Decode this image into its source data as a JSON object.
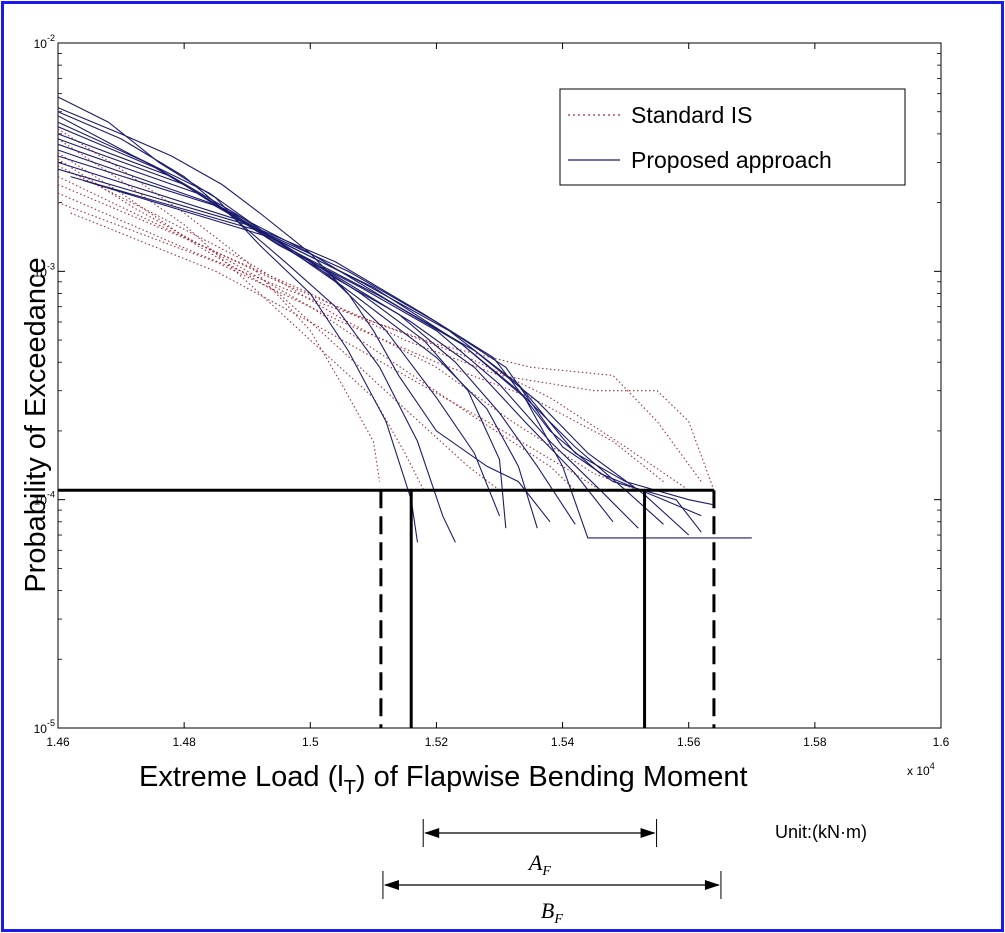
{
  "chart_data": {
    "type": "line",
    "xlabel": "Extreme Load (l_T) of Flapwise Bending Moment",
    "xlabel_parts": {
      "pre": "Extreme Load (l",
      "sub": "T",
      "post": ") of Flapwise Bending Moment"
    },
    "ylabel": "Probability of Exceedance",
    "x_multiplier": {
      "base": "x 10",
      "exp": "4"
    },
    "xlim": [
      14600,
      16000
    ],
    "ylim": [
      1e-05,
      0.01
    ],
    "yscale": "log",
    "grid": false,
    "legend_position": "top-right",
    "x_ticks": [
      {
        "value": 14600,
        "label": "1.46"
      },
      {
        "value": 14800,
        "label": "1.48"
      },
      {
        "value": 15000,
        "label": "1.5"
      },
      {
        "value": 15200,
        "label": "1.52"
      },
      {
        "value": 15400,
        "label": "1.54"
      },
      {
        "value": 15600,
        "label": "1.56"
      },
      {
        "value": 15800,
        "label": "1.58"
      },
      {
        "value": 16000,
        "label": "1.6"
      }
    ],
    "y_ticks": [
      {
        "value": 1e-05,
        "base": "10",
        "exp": "-5"
      },
      {
        "value": 0.0001,
        "base": "10",
        "exp": "-4"
      },
      {
        "value": 0.001,
        "base": "10",
        "exp": "-3"
      },
      {
        "value": 0.01,
        "base": "10",
        "exp": "-2"
      }
    ],
    "series": [
      {
        "name": "Standard IS",
        "style": "dotted",
        "color": "#a0303a",
        "curves": [
          [
            [
              14600,
              0.0042
            ],
            [
              14700,
              0.0028
            ],
            [
              14800,
              0.0018
            ],
            [
              14900,
              0.0011
            ],
            [
              15000,
              0.00055
            ],
            [
              15050,
              0.00032
            ],
            [
              15100,
              0.00018
            ],
            [
              15110,
              0.00012
            ]
          ],
          [
            [
              14600,
              0.0038
            ],
            [
              14700,
              0.0025
            ],
            [
              14800,
              0.0016
            ],
            [
              14900,
              0.0009
            ],
            [
              15000,
              0.0005
            ],
            [
              15100,
              0.00028
            ],
            [
              15150,
              0.00016
            ],
            [
              15180,
              0.00011
            ]
          ],
          [
            [
              14600,
              0.0033
            ],
            [
              14700,
              0.0022
            ],
            [
              14820,
              0.0013
            ],
            [
              14950,
              0.0008
            ],
            [
              15050,
              0.00045
            ],
            [
              15150,
              0.00025
            ],
            [
              15250,
              0.00014
            ],
            [
              15300,
              0.00011
            ]
          ],
          [
            [
              14600,
              0.0031
            ],
            [
              14720,
              0.0019
            ],
            [
              14850,
              0.0012
            ],
            [
              15000,
              0.0007
            ],
            [
              15120,
              0.00042
            ],
            [
              15250,
              0.00024
            ],
            [
              15380,
              0.00014
            ],
            [
              15420,
              0.00011
            ]
          ],
          [
            [
              14600,
              0.0029
            ],
            [
              14750,
              0.0018
            ],
            [
              14900,
              0.0011
            ],
            [
              15050,
              0.00062
            ],
            [
              15200,
              0.00038
            ],
            [
              15320,
              0.00022
            ],
            [
              15450,
              0.00013
            ],
            [
              15520,
              0.00011
            ]
          ],
          [
            [
              14600,
              0.0026
            ],
            [
              14780,
              0.0015
            ],
            [
              14950,
              0.0009
            ],
            [
              15100,
              0.0006
            ],
            [
              15250,
              0.00042
            ],
            [
              15380,
              0.00028
            ],
            [
              15500,
              0.00017
            ],
            [
              15600,
              0.00011
            ]
          ],
          [
            [
              14600,
              0.0024
            ],
            [
              14800,
              0.0014
            ],
            [
              15000,
              0.0008
            ],
            [
              15150,
              0.0005
            ],
            [
              15300,
              0.00035
            ],
            [
              15450,
              0.0003
            ],
            [
              15550,
              0.0003
            ],
            [
              15600,
              0.00022
            ],
            [
              15640,
              0.00011
            ]
          ],
          [
            [
              14600,
              0.0022
            ],
            [
              14820,
              0.0012
            ],
            [
              15020,
              0.00072
            ],
            [
              15200,
              0.00048
            ],
            [
              15350,
              0.00038
            ],
            [
              15480,
              0.00035
            ],
            [
              15550,
              0.00022
            ],
            [
              15620,
              0.00012
            ]
          ],
          [
            [
              14600,
              0.002
            ],
            [
              14850,
              0.0011
            ],
            [
              15050,
              0.0006
            ],
            [
              15200,
              0.0004
            ],
            [
              15350,
              0.00028
            ],
            [
              15480,
              0.00018
            ],
            [
              15560,
              0.00012
            ]
          ],
          [
            [
              14620,
              0.0018
            ],
            [
              14850,
              0.001
            ],
            [
              15000,
              0.0006
            ],
            [
              15150,
              0.00035
            ],
            [
              15280,
              0.00022
            ],
            [
              15400,
              0.00014
            ],
            [
              15460,
              0.00011
            ]
          ]
        ]
      },
      {
        "name": "Proposed approach",
        "style": "solid",
        "color": "#1c1c6e",
        "curves": [
          [
            [
              14600,
              0.0058
            ],
            [
              14680,
              0.0045
            ],
            [
              14760,
              0.003
            ],
            [
              14850,
              0.0021
            ],
            [
              14920,
              0.0013
            ],
            [
              15000,
              0.0008
            ],
            [
              15060,
              0.00045
            ],
            [
              15120,
              0.00022
            ],
            [
              15160,
              0.0001
            ],
            [
              15170,
              6.5e-05
            ]
          ],
          [
            [
              14600,
              0.005
            ],
            [
              14700,
              0.0038
            ],
            [
              14800,
              0.0026
            ],
            [
              14880,
              0.0017
            ],
            [
              14960,
              0.0011
            ],
            [
              15040,
              0.0007
            ],
            [
              15110,
              0.00038
            ],
            [
              15170,
              0.00018
            ],
            [
              15210,
              8.5e-05
            ],
            [
              15230,
              6.5e-05
            ]
          ],
          [
            [
              14600,
              0.0048
            ],
            [
              14720,
              0.0032
            ],
            [
              14840,
              0.0022
            ],
            [
              14940,
              0.0014
            ],
            [
              15040,
              0.0009
            ],
            [
              15120,
              0.00055
            ],
            [
              15200,
              0.00028
            ],
            [
              15260,
              0.00016
            ],
            [
              15300,
              8.5e-05
            ]
          ],
          [
            [
              14600,
              0.0045
            ],
            [
              14740,
              0.003
            ],
            [
              14860,
              0.0019
            ],
            [
              14980,
              0.0012
            ],
            [
              15080,
              0.0008
            ],
            [
              15180,
              0.0005
            ],
            [
              15250,
              0.0003
            ],
            [
              15300,
              0.00015
            ],
            [
              15310,
              7.5e-05
            ]
          ],
          [
            [
              14600,
              0.0043
            ],
            [
              14760,
              0.0028
            ],
            [
              14880,
              0.0018
            ],
            [
              15000,
              0.0011
            ],
            [
              15100,
              0.00068
            ],
            [
              15200,
              0.00042
            ],
            [
              15280,
              0.00025
            ],
            [
              15330,
              0.00014
            ],
            [
              15360,
              7.5e-05
            ]
          ],
          [
            [
              14600,
              0.004
            ],
            [
              14780,
              0.0026
            ],
            [
              14900,
              0.0016
            ],
            [
              15020,
              0.001
            ],
            [
              15140,
              0.00065
            ],
            [
              15230,
              0.0004
            ],
            [
              15300,
              0.00024
            ],
            [
              15360,
              0.00014
            ],
            [
              15420,
              7.8e-05
            ]
          ],
          [
            [
              14600,
              0.0038
            ],
            [
              14800,
              0.0024
            ],
            [
              14920,
              0.0015
            ],
            [
              15050,
              0.00092
            ],
            [
              15160,
              0.0006
            ],
            [
              15260,
              0.00038
            ],
            [
              15340,
              0.00022
            ],
            [
              15420,
              0.00013
            ],
            [
              15480,
              8e-05
            ]
          ],
          [
            [
              14600,
              0.0036
            ],
            [
              14820,
              0.0022
            ],
            [
              14950,
              0.0013
            ],
            [
              15080,
              0.00085
            ],
            [
              15200,
              0.00055
            ],
            [
              15300,
              0.00032
            ],
            [
              15380,
              0.00018
            ],
            [
              15460,
              0.00011
            ],
            [
              15520,
              7.5e-05
            ]
          ],
          [
            [
              14600,
              0.0034
            ],
            [
              14840,
              0.002
            ],
            [
              14980,
              0.0012
            ],
            [
              15110,
              0.00078
            ],
            [
              15240,
              0.00048
            ],
            [
              15330,
              0.0003
            ],
            [
              15420,
              0.00017
            ],
            [
              15500,
              0.00011
            ],
            [
              15560,
              7.8e-05
            ]
          ],
          [
            [
              14600,
              0.0032
            ],
            [
              14860,
              0.0019
            ],
            [
              15000,
              0.0012
            ],
            [
              15140,
              0.0007
            ],
            [
              15260,
              0.00045
            ],
            [
              15360,
              0.00027
            ],
            [
              15440,
              0.00016
            ],
            [
              15530,
              0.000105
            ],
            [
              15600,
              7e-05
            ]
          ],
          [
            [
              14600,
              0.003
            ],
            [
              14880,
              0.0017
            ],
            [
              15040,
              0.0011
            ],
            [
              15180,
              0.00065
            ],
            [
              15290,
              0.00042
            ],
            [
              15380,
              0.0002
            ],
            [
              15460,
              0.00013
            ],
            [
              15560,
              0.0001
            ],
            [
              15620,
              8.5e-05
            ]
          ],
          [
            [
              14600,
              0.0028
            ],
            [
              14900,
              0.0016
            ],
            [
              15060,
              0.001
            ],
            [
              15200,
              0.0006
            ],
            [
              15310,
              0.00038
            ],
            [
              15400,
              0.00017
            ],
            [
              15480,
              0.00012
            ],
            [
              15580,
              0.0001
            ],
            [
              15620,
              7.2e-05
            ]
          ],
          [
            [
              14620,
              0.0026
            ],
            [
              14920,
              0.0015
            ],
            [
              15080,
              0.0009
            ],
            [
              15220,
              0.00055
            ],
            [
              15330,
              0.00032
            ],
            [
              15420,
              0.00016
            ],
            [
              15500,
              0.00012
            ],
            [
              15600,
              0.0001
            ],
            [
              15640,
              9.5e-05
            ]
          ],
          [
            [
              14640,
              0.0025
            ],
            [
              14940,
              0.0014
            ],
            [
              15100,
              0.00085
            ],
            [
              15240,
              0.00048
            ],
            [
              15340,
              0.00028
            ],
            [
              15400,
              0.00014
            ],
            [
              15440,
              6.8e-05
            ],
            [
              15700,
              6.8e-05
            ]
          ],
          [
            [
              14600,
              0.0052
            ],
            [
              14700,
              0.004
            ],
            [
              14780,
              0.0032
            ],
            [
              14860,
              0.0024
            ],
            [
              14920,
              0.0018
            ],
            [
              15000,
              0.0012
            ],
            [
              15060,
              0.0008
            ],
            [
              15100,
              0.00055
            ],
            [
              15140,
              0.00035
            ],
            [
              15200,
              0.0002
            ],
            [
              15280,
              0.00014
            ],
            [
              15330,
              0.00012
            ],
            [
              15380,
              8e-05
            ]
          ]
        ]
      }
    ],
    "reference_lines": {
      "probability": 0.00011,
      "solid_x": [
        15160,
        15530
      ],
      "dashed_x": [
        15112,
        15640
      ]
    },
    "annotations": {
      "A": {
        "label": "A",
        "sub": "F",
        "x_from": 15160,
        "x_to": 15530
      },
      "B": {
        "label": "B",
        "sub": "F",
        "x_from": 15112,
        "x_to": 15640
      },
      "unit": "Unit:(kN·m)"
    }
  }
}
